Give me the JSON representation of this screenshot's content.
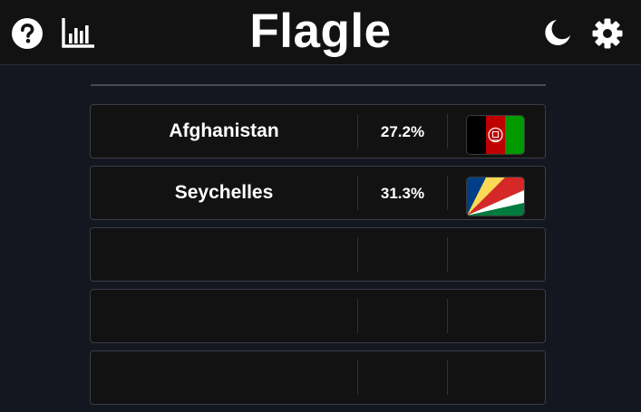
{
  "header": {
    "title": "Flagle",
    "icons": [
      "help-icon",
      "stats-icon",
      "dark-mode-icon",
      "settings-icon"
    ]
  },
  "colors": {
    "background": "#141720",
    "header": "#121212",
    "row": "#121212",
    "row_border": "#3a3d45"
  },
  "guesses": [
    {
      "country": "Afghanistan",
      "percent": "27.2%",
      "flag": "afghanistan-flag"
    },
    {
      "country": "Seychelles",
      "percent": "31.3%",
      "flag": "seychelles-flag"
    },
    {
      "country": "",
      "percent": "",
      "flag": ""
    },
    {
      "country": "",
      "percent": "",
      "flag": ""
    },
    {
      "country": "",
      "percent": "",
      "flag": ""
    }
  ]
}
